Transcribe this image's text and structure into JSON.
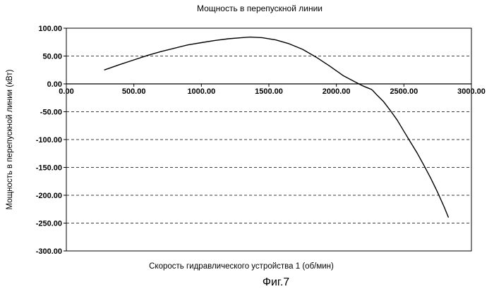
{
  "chart_data": {
    "type": "line",
    "title": "Мощность в перепускной линии",
    "xlabel": "Скорость гидравлического устройства 1 (об/мин)",
    "ylabel": "Мощность в перепускной линии (кВт)",
    "caption": "Фиг.7",
    "xlim": [
      0,
      3000
    ],
    "ylim": [
      -300,
      100
    ],
    "x_ticks": [
      "0.00",
      "500.00",
      "1000.00",
      "1500.00",
      "2000.00",
      "2500.00",
      "3000.00"
    ],
    "y_ticks": [
      "100.00",
      "50.00",
      "0.00",
      "-50.00",
      "-100.00",
      "-150.00",
      "-200.00",
      "-250.00",
      "-300.00"
    ],
    "grid": "horizontal dashed",
    "series": [
      {
        "x": [
          280,
          400,
          500,
          600,
          700,
          800,
          900,
          1000,
          1100,
          1200,
          1300,
          1360,
          1450,
          1550,
          1650,
          1750,
          1850,
          1950,
          2050,
          2150,
          2200,
          2240,
          2260,
          2270,
          2300,
          2350,
          2400,
          2450,
          2500,
          2550,
          2600,
          2650,
          2700,
          2750,
          2800,
          2830
        ],
        "y": [
          25,
          35,
          43,
          51,
          58,
          64,
          70,
          74,
          78,
          81,
          83,
          84,
          83,
          79,
          72,
          62,
          48,
          32,
          15,
          2,
          -4,
          -8,
          -10,
          -12,
          -20,
          -32,
          -48,
          -65,
          -85,
          -105,
          -125,
          -147,
          -170,
          -195,
          -222,
          -240
        ]
      }
    ]
  }
}
